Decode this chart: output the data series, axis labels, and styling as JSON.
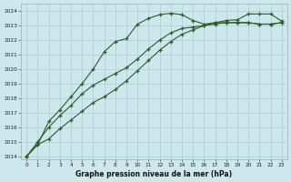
{
  "xlabel": "Graphe pression niveau de la mer (hPa)",
  "bg_color": "#cce8ec",
  "grid_color": "#aacccc",
  "line_color": "#2d5a2d",
  "xlim": [
    -0.5,
    23.5
  ],
  "ylim": [
    1013.8,
    1024.5
  ],
  "yticks": [
    1014,
    1015,
    1016,
    1017,
    1018,
    1019,
    1020,
    1021,
    1022,
    1023,
    1024
  ],
  "xticks": [
    0,
    1,
    2,
    3,
    4,
    5,
    6,
    7,
    8,
    9,
    10,
    11,
    12,
    13,
    14,
    15,
    16,
    17,
    18,
    19,
    20,
    21,
    22,
    23
  ],
  "series1_x": [
    0,
    1,
    2,
    3,
    4,
    5,
    6,
    7,
    8,
    9,
    10,
    11,
    12,
    13,
    14,
    15,
    16,
    17,
    18,
    19,
    20,
    21,
    22,
    23
  ],
  "series1_y": [
    1014.0,
    1014.8,
    1015.2,
    1015.9,
    1016.5,
    1017.1,
    1017.7,
    1018.1,
    1018.6,
    1019.2,
    1019.9,
    1020.6,
    1021.3,
    1021.9,
    1022.4,
    1022.7,
    1023.0,
    1023.2,
    1023.2,
    1023.2,
    1023.2,
    1023.1,
    1023.1,
    1023.2
  ],
  "series2_x": [
    0,
    1,
    2,
    3,
    4,
    5,
    6,
    7,
    8,
    9,
    10,
    11,
    12,
    13,
    14,
    15,
    16,
    17,
    18,
    19,
    20,
    21,
    22,
    23
  ],
  "series2_y": [
    1014.0,
    1015.0,
    1016.0,
    1016.8,
    1017.5,
    1018.3,
    1018.9,
    1019.3,
    1019.7,
    1020.1,
    1020.7,
    1021.4,
    1022.0,
    1022.5,
    1022.8,
    1022.9,
    1023.0,
    1023.1,
    1023.2,
    1023.2,
    1023.2,
    1023.1,
    1023.1,
    1023.2
  ],
  "series3_x": [
    0,
    1,
    2,
    3,
    4,
    5,
    6,
    7,
    8,
    9,
    10,
    11,
    12,
    13,
    14,
    15,
    16,
    17,
    18,
    19,
    20,
    21,
    22,
    23
  ],
  "series3_y": [
    1014.0,
    1014.8,
    1016.4,
    1017.2,
    1018.1,
    1019.0,
    1020.0,
    1021.2,
    1021.9,
    1022.1,
    1023.1,
    1023.5,
    1023.75,
    1023.85,
    1023.75,
    1023.35,
    1023.1,
    1023.2,
    1023.35,
    1023.4,
    1023.8,
    1023.8,
    1023.8,
    1023.3
  ]
}
